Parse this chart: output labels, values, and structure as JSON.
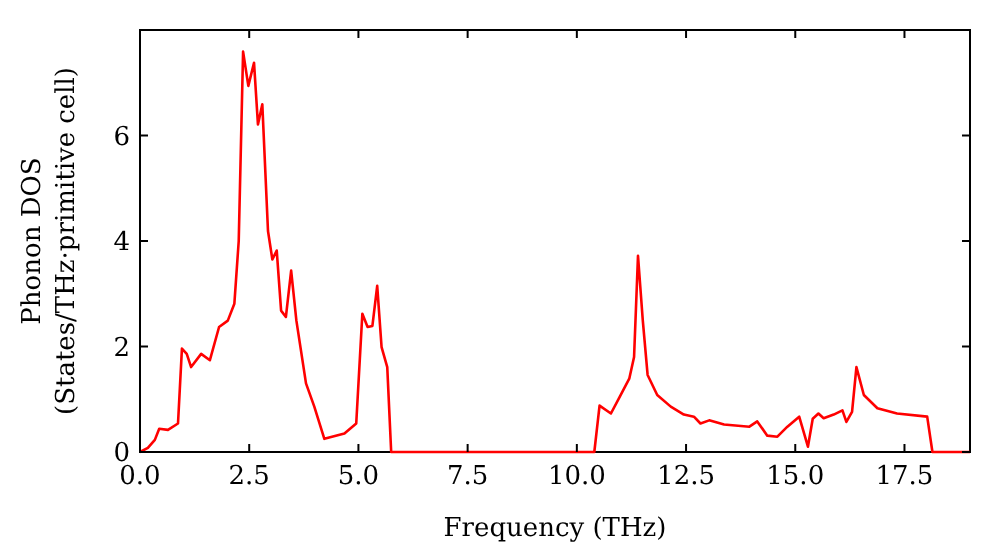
{
  "chart_data": {
    "type": "line",
    "xlabel": "Frequency (THz)",
    "ylabel": "Phonon DOS\n(States/THz·primitive cell)",
    "xlim": [
      0,
      19
    ],
    "ylim": [
      0,
      8
    ],
    "xticks": [
      {
        "value": 0,
        "label": "0.0"
      },
      {
        "value": 2.5,
        "label": "2.5"
      },
      {
        "value": 5,
        "label": "5.0"
      },
      {
        "value": 7.5,
        "label": "7.5"
      },
      {
        "value": 10,
        "label": "10.0"
      },
      {
        "value": 12.5,
        "label": "12.5"
      },
      {
        "value": 15,
        "label": "15.0"
      },
      {
        "value": 17.5,
        "label": "17.5"
      }
    ],
    "yticks": [
      0,
      2,
      4,
      6
    ],
    "grid": false,
    "marker": "none",
    "line_style": "solid",
    "series": [
      {
        "color": "#ff0000",
        "x": [
          0,
          0.18,
          0.34,
          0.44,
          0.64,
          0.87,
          0.96,
          1.07,
          1.17,
          1.4,
          1.6,
          1.81,
          2.01,
          2.16,
          2.26,
          2.36,
          2.48,
          2.61,
          2.7,
          2.8,
          2.93,
          3.03,
          3.13,
          3.23,
          3.34,
          3.46,
          3.58,
          3.8,
          3.99,
          4.22,
          4.68,
          4.95,
          5.09,
          5.21,
          5.32,
          5.43,
          5.53,
          5.66,
          5.75,
          10.4,
          10.52,
          10.78,
          10.96,
          11.2,
          11.31,
          11.4,
          11.51,
          11.62,
          11.84,
          12.15,
          12.45,
          12.68,
          12.83,
          13.03,
          13.37,
          13.95,
          14.13,
          14.36,
          14.59,
          14.82,
          15.09,
          15.29,
          15.4,
          15.53,
          15.65,
          15.88,
          16.08,
          16.17,
          16.3,
          16.4,
          16.57,
          16.88,
          17.33,
          18.02,
          18.14,
          19
        ],
        "values": [
          0,
          0.08,
          0.23,
          0.44,
          0.42,
          0.54,
          1.96,
          1.86,
          1.61,
          1.86,
          1.74,
          2.37,
          2.49,
          2.81,
          4.0,
          7.59,
          6.94,
          7.38,
          6.21,
          6.59,
          4.19,
          3.65,
          3.82,
          2.68,
          2.56,
          3.44,
          2.49,
          1.3,
          0.86,
          0.25,
          0.35,
          0.54,
          2.62,
          2.37,
          2.39,
          3.15,
          1.99,
          1.61,
          0,
          0,
          0.88,
          0.73,
          1.01,
          1.39,
          1.8,
          3.72,
          2.49,
          1.46,
          1.08,
          0.86,
          0.71,
          0.67,
          0.54,
          0.6,
          0.52,
          0.48,
          0.58,
          0.31,
          0.29,
          0.48,
          0.67,
          0.1,
          0.63,
          0.73,
          0.64,
          0.71,
          0.79,
          0.57,
          0.76,
          1.61,
          1.08,
          0.83,
          0.73,
          0.67,
          0,
          0
        ]
      }
    ]
  }
}
